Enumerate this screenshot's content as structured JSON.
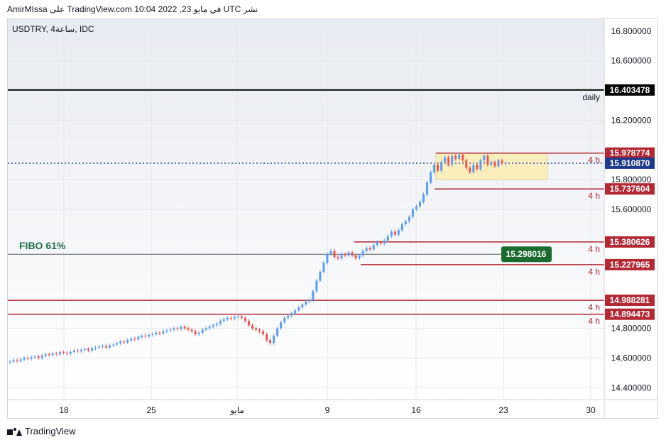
{
  "header": {
    "text": "AmirMIssa على TradingView.com في مايو 23, 2022 10:04 UTC نشر"
  },
  "symbol": {
    "text": "USDTRY, 4ساعة, IDC"
  },
  "footer": {
    "brand": "TradingView"
  },
  "colors": {
    "up": "#5b9cf6",
    "down": "#ef5350",
    "red_line": "#b22833",
    "black_line": "#000000",
    "price_line": "#2a3fa8",
    "green_tag": "#1b6b2e",
    "fibo_text": "#216b4a",
    "box_fill": "#fbefb6",
    "bg_top": "#eceef2",
    "bg_bottom": "#ffffff"
  },
  "chart_data": {
    "type": "candlestick",
    "y_axis": {
      "ylim": [
        14.32,
        16.88
      ],
      "ticks": [
        "16.800000",
        "16.600000",
        "16.200000",
        "15.800000",
        "15.600000",
        "14.800000",
        "14.600000",
        "14.400000"
      ]
    },
    "x_axis": {
      "ticks": [
        "18",
        "25",
        "مايو",
        "9",
        "16",
        "23",
        "30"
      ]
    },
    "grid": true,
    "levels": [
      {
        "value": "16.403478",
        "label": "daily",
        "style": "black"
      },
      {
        "value": "15.978774",
        "label": "4 h",
        "style": "red"
      },
      {
        "value": "15.910870",
        "label": "",
        "style": "current"
      },
      {
        "value": "15.737604",
        "label": "4 h",
        "style": "red"
      },
      {
        "value": "15.380626",
        "label": "4 h",
        "style": "red"
      },
      {
        "value": "15.298016",
        "label": "FIBO 61%",
        "style": "fibo"
      },
      {
        "value": "15.227965",
        "label": "4 h",
        "style": "red"
      },
      {
        "value": "14.988281",
        "label": "4 h",
        "style": "red"
      },
      {
        "value": "14.894473",
        "label": "4 h",
        "style": "red"
      }
    ],
    "zone": {
      "low": 15.8,
      "high": 15.978774
    },
    "candles_close": [
      14.575,
      14.585,
      14.58,
      14.59,
      14.6,
      14.595,
      14.605,
      14.61,
      14.6,
      14.615,
      14.625,
      14.62,
      14.63,
      14.625,
      14.64,
      14.635,
      14.63,
      14.64,
      14.65,
      14.645,
      14.655,
      14.66,
      14.65,
      14.665,
      14.67,
      14.675,
      14.68,
      14.67,
      14.685,
      14.69,
      14.7,
      14.71,
      14.705,
      14.72,
      14.73,
      14.725,
      14.74,
      14.75,
      14.745,
      14.755,
      14.76,
      14.77,
      14.765,
      14.78,
      14.785,
      14.79,
      14.8,
      14.795,
      14.81,
      14.8,
      14.79,
      14.78,
      14.76,
      14.77,
      14.79,
      14.8,
      14.81,
      14.82,
      14.83,
      14.85,
      14.86,
      14.87,
      14.865,
      14.875,
      14.88,
      14.87,
      14.85,
      14.82,
      14.8,
      14.79,
      14.78,
      14.76,
      14.72,
      14.7,
      14.75,
      14.8,
      14.84,
      14.87,
      14.885,
      14.9,
      14.92,
      14.94,
      14.96,
      14.98,
      14.99,
      15.05,
      15.12,
      15.18,
      15.24,
      15.3,
      15.32,
      15.28,
      15.27,
      15.3,
      15.29,
      15.31,
      15.29,
      15.27,
      15.29,
      15.32,
      15.34,
      15.33,
      15.36,
      15.38,
      15.37,
      15.39,
      15.42,
      15.45,
      15.43,
      15.46,
      15.5,
      15.52,
      15.55,
      15.6,
      15.62,
      15.65,
      15.7,
      15.78,
      15.85,
      15.9,
      15.86,
      15.92,
      15.95,
      15.9,
      15.96,
      15.94,
      15.97,
      15.93,
      15.88,
      15.85,
      15.9,
      15.87,
      15.93,
      15.96,
      15.9,
      15.92,
      15.89,
      15.93,
      15.91,
      15.91
    ]
  }
}
